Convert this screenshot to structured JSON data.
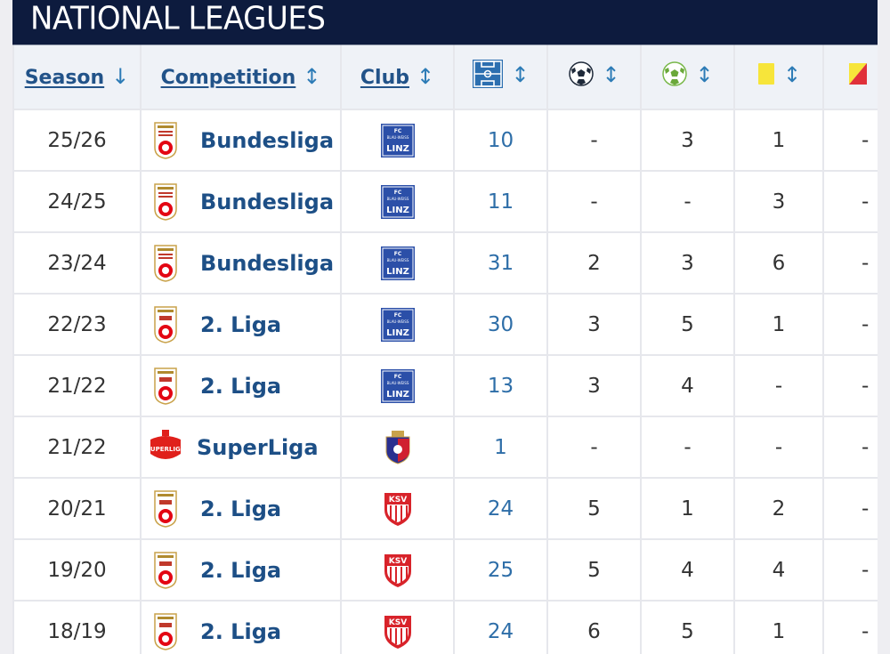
{
  "section_title": "NATIONAL LEAGUES",
  "headers": {
    "season": "Season",
    "season_arrow": "↓",
    "competition": "Competition",
    "competition_arrow": "↕",
    "club": "Club",
    "club_arrow": "↕",
    "apps_icon": "pitch-icon",
    "apps_arrow": "↕",
    "goals_icon": "football-icon",
    "goals_arrow": "↕",
    "assists_icon": "green-football-icon",
    "assists_arrow": "↕",
    "yellow_icon": "yellow-card-icon",
    "yellow_arrow": "↕",
    "second_yellow_icon": "yellow-red-card-icon"
  },
  "rows": [
    {
      "season": "25/26",
      "competition": "Bundesliga",
      "comp_logo": "bundesliga-logo",
      "club_logo": "fc-blau-weiss-linz-logo",
      "apps": "10",
      "goals": "-",
      "assists": "3",
      "yellow": "1",
      "yellow_red": "-"
    },
    {
      "season": "24/25",
      "competition": "Bundesliga",
      "comp_logo": "bundesliga-logo",
      "club_logo": "fc-blau-weiss-linz-logo",
      "apps": "11",
      "goals": "-",
      "assists": "-",
      "yellow": "3",
      "yellow_red": "-"
    },
    {
      "season": "23/24",
      "competition": "Bundesliga",
      "comp_logo": "bundesliga-logo",
      "club_logo": "fc-blau-weiss-linz-logo",
      "apps": "31",
      "goals": "2",
      "assists": "3",
      "yellow": "6",
      "yellow_red": "-"
    },
    {
      "season": "22/23",
      "competition": "2. Liga",
      "comp_logo": "2-liga-logo",
      "club_logo": "fc-blau-weiss-linz-logo",
      "apps": "30",
      "goals": "3",
      "assists": "5",
      "yellow": "1",
      "yellow_red": "-"
    },
    {
      "season": "21/22",
      "competition": "2. Liga",
      "comp_logo": "2-liga-logo",
      "club_logo": "fc-blau-weiss-linz-logo",
      "apps": "13",
      "goals": "3",
      "assists": "4",
      "yellow": "-",
      "yellow_red": "-"
    },
    {
      "season": "21/22",
      "competition": "SuperLiga",
      "comp_logo": "superliga-logo",
      "club_logo": "fc-botosani-logo",
      "apps": "1",
      "goals": "-",
      "assists": "-",
      "yellow": "-",
      "yellow_red": "-"
    },
    {
      "season": "20/21",
      "competition": "2. Liga",
      "comp_logo": "2-liga-logo",
      "club_logo": "ksv-1919-logo",
      "apps": "24",
      "goals": "5",
      "assists": "1",
      "yellow": "2",
      "yellow_red": "-"
    },
    {
      "season": "19/20",
      "competition": "2. Liga",
      "comp_logo": "2-liga-logo",
      "club_logo": "ksv-1919-logo",
      "apps": "25",
      "goals": "5",
      "assists": "4",
      "yellow": "4",
      "yellow_red": "-"
    },
    {
      "season": "18/19",
      "competition": "2. Liga",
      "comp_logo": "2-liga-logo",
      "club_logo": "ksv-1919-logo",
      "apps": "24",
      "goals": "6",
      "assists": "5",
      "yellow": "1",
      "yellow_red": "-"
    }
  ],
  "logo_text": {
    "linz_fc": "FC",
    "linz_bw": "BLAU-WEISS",
    "linz_name": "LINZ",
    "ksv": "KSV",
    "superliga": "SUPERLIGA"
  },
  "colors": {
    "header_bg": "#0d1b3e",
    "link_blue": "#1d4f86",
    "number_blue": "#2e6ea8",
    "linz_blue": "#2b4fa8",
    "austria_red": "#e30613",
    "yellow_card": "#f7e53a"
  }
}
